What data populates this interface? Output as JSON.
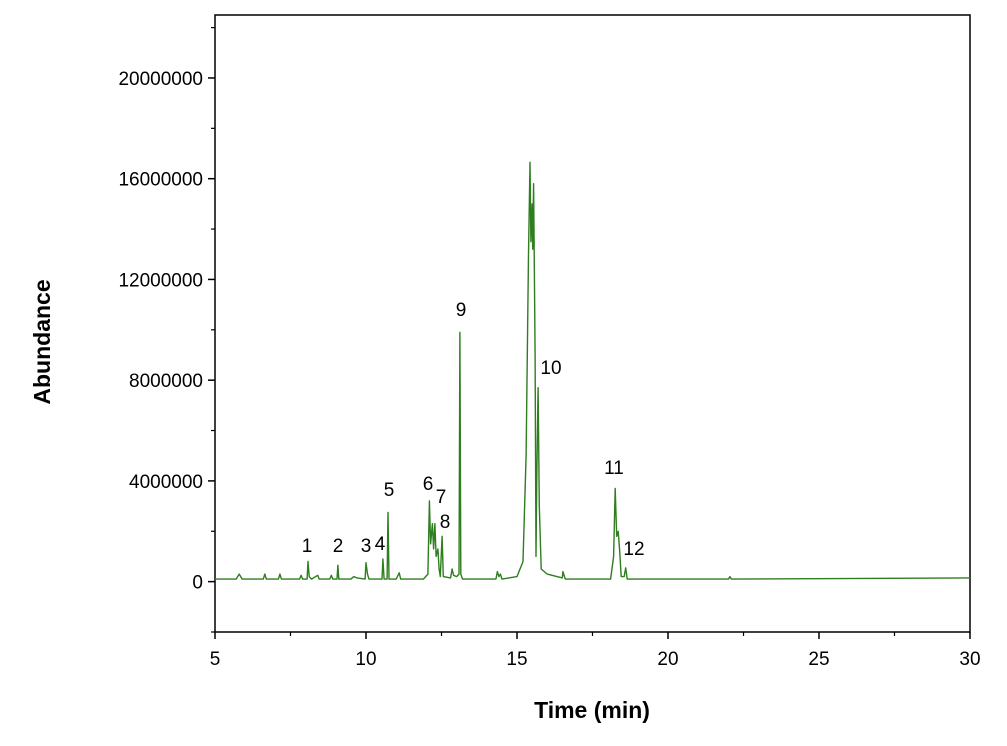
{
  "chart_data": {
    "type": "line",
    "title": "",
    "xlabel": "Time (min)",
    "ylabel": "Abundance",
    "xlim": [
      5,
      30
    ],
    "ylim": [
      -2000000,
      22500000
    ],
    "xticks": [
      5,
      10,
      15,
      20,
      25,
      30
    ],
    "yticks": [
      0,
      4000000,
      8000000,
      12000000,
      16000000,
      20000000
    ],
    "grid": false,
    "legend": "none",
    "line_color": "#2e7d1e",
    "series": [
      {
        "name": "chromatogram",
        "x": [
          5.0,
          5.7,
          5.8,
          5.9,
          6.6,
          6.65,
          6.7,
          7.1,
          7.15,
          7.2,
          7.8,
          7.85,
          7.9,
          8.05,
          8.08,
          8.12,
          8.2,
          8.4,
          8.45,
          8.8,
          8.85,
          8.9,
          9.04,
          9.07,
          9.1,
          9.5,
          9.6,
          9.7,
          9.97,
          10.0,
          10.05,
          10.1,
          10.53,
          10.56,
          10.6,
          10.7,
          10.73,
          10.76,
          11.0,
          11.1,
          11.15,
          11.9,
          12.05,
          12.1,
          12.14,
          12.2,
          12.24,
          12.28,
          12.32,
          12.38,
          12.42,
          12.46,
          12.52,
          12.56,
          12.8,
          12.85,
          12.9,
          13.0,
          13.08,
          13.11,
          13.14,
          13.2,
          14.3,
          14.35,
          14.4,
          14.45,
          14.5,
          15.0,
          15.2,
          15.3,
          15.38,
          15.43,
          15.46,
          15.5,
          15.52,
          15.55,
          15.6,
          15.63,
          15.66,
          15.7,
          15.74,
          15.8,
          16.0,
          16.5,
          16.52,
          16.6,
          18.1,
          18.2,
          18.25,
          18.3,
          18.35,
          18.4,
          18.45,
          18.55,
          18.6,
          18.65,
          22.0,
          22.05,
          22.1,
          30.0
        ],
        "y": [
          100000,
          100000,
          300000,
          100000,
          100000,
          300000,
          100000,
          100000,
          300000,
          100000,
          100000,
          250000,
          100000,
          100000,
          800000,
          200000,
          100000,
          250000,
          100000,
          100000,
          250000,
          100000,
          100000,
          650000,
          100000,
          100000,
          200000,
          150000,
          100000,
          750000,
          300000,
          100000,
          100000,
          900000,
          100000,
          100000,
          2750000,
          100000,
          100000,
          350000,
          100000,
          100000,
          300000,
          3200000,
          1500000,
          2300000,
          1300000,
          2300000,
          1000000,
          1300000,
          500000,
          200000,
          1800000,
          200000,
          150000,
          500000,
          250000,
          200000,
          300000,
          9900000,
          300000,
          100000,
          100000,
          400000,
          200000,
          300000,
          100000,
          200000,
          800000,
          5000000,
          13000000,
          16650000,
          13500000,
          15000000,
          13200000,
          15800000,
          9000000,
          1000000,
          4500000,
          7700000,
          3000000,
          500000,
          300000,
          150000,
          400000,
          100000,
          100000,
          1000000,
          3700000,
          1800000,
          2000000,
          1200000,
          200000,
          200000,
          550000,
          100000,
          100000,
          200000,
          100000,
          150000
        ]
      }
    ],
    "annotations": [
      {
        "label": "1",
        "time": 8.08
      },
      {
        "label": "2",
        "time": 9.07
      },
      {
        "label": "3",
        "time": 10.0
      },
      {
        "label": "4",
        "time": 10.56
      },
      {
        "label": "5",
        "time": 10.73
      },
      {
        "label": "6",
        "time": 12.1
      },
      {
        "label": "7",
        "time": 12.28
      },
      {
        "label": "8",
        "time": 12.52
      },
      {
        "label": "9",
        "time": 13.11
      },
      {
        "label": "10",
        "time": 15.7
      },
      {
        "label": "11",
        "time": 18.25
      },
      {
        "label": "12",
        "time": 18.4
      }
    ]
  }
}
